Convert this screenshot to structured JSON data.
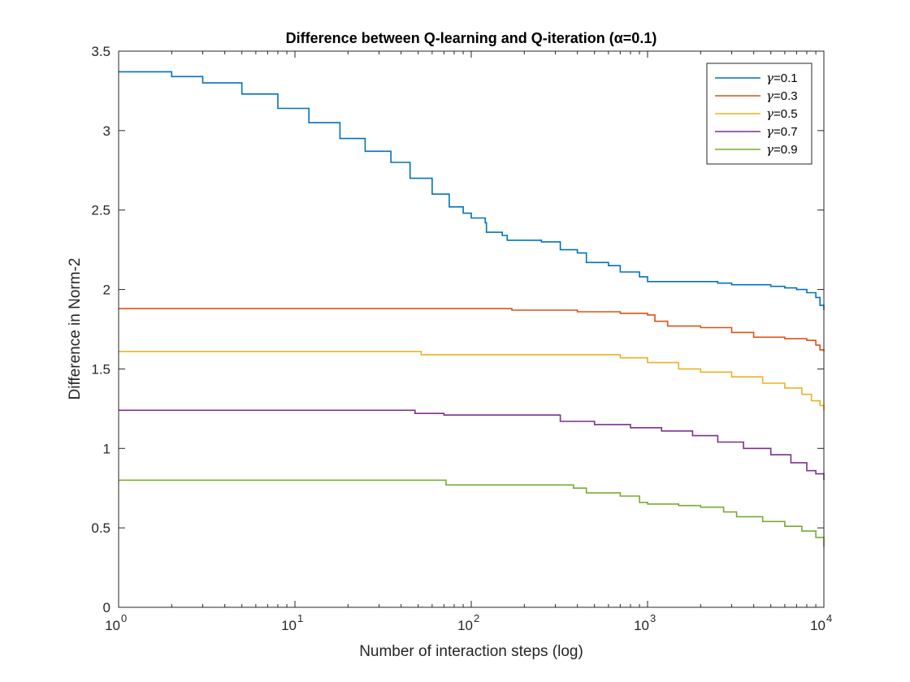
{
  "chart_data": {
    "type": "line",
    "title": "Difference between Q-learning and Q-iteration (α=0.1)",
    "xlabel": "Number of interaction steps (log)",
    "ylabel": "Difference in Norm-2",
    "xscale": "log",
    "xlim": [
      1,
      10000
    ],
    "ylim": [
      0,
      3.5
    ],
    "xticks": [
      1,
      10,
      100,
      1000,
      10000
    ],
    "xtick_base": "10",
    "xtick_exponents": [
      "0",
      "1",
      "2",
      "3",
      "4"
    ],
    "yticks": [
      0,
      0.5,
      1,
      1.5,
      2,
      2.5,
      3,
      3.5
    ],
    "ytick_labels": [
      "0",
      "0.5",
      "1",
      "1.5",
      "2",
      "2.5",
      "3",
      "3.5"
    ],
    "grid": false,
    "legend_position": "top-right",
    "series": [
      {
        "name": "γ=0.1",
        "symbol": "γ",
        "value_label": "=0.1",
        "color": "#0072BD",
        "points": [
          [
            1,
            3.37
          ],
          [
            2,
            3.34
          ],
          [
            3,
            3.3
          ],
          [
            5,
            3.23
          ],
          [
            8,
            3.14
          ],
          [
            12,
            3.05
          ],
          [
            18,
            2.95
          ],
          [
            25,
            2.87
          ],
          [
            35,
            2.8
          ],
          [
            45,
            2.7
          ],
          [
            60,
            2.6
          ],
          [
            75,
            2.52
          ],
          [
            90,
            2.48
          ],
          [
            100,
            2.45
          ],
          [
            120,
            2.42
          ],
          [
            122,
            2.36
          ],
          [
            150,
            2.34
          ],
          [
            160,
            2.31
          ],
          [
            250,
            2.3
          ],
          [
            300,
            2.3
          ],
          [
            320,
            2.25
          ],
          [
            400,
            2.23
          ],
          [
            450,
            2.17
          ],
          [
            600,
            2.15
          ],
          [
            700,
            2.11
          ],
          [
            900,
            2.08
          ],
          [
            1000,
            2.05
          ],
          [
            1500,
            2.05
          ],
          [
            2500,
            2.04
          ],
          [
            3000,
            2.03
          ],
          [
            4000,
            2.03
          ],
          [
            5000,
            2.02
          ],
          [
            6000,
            2.01
          ],
          [
            7000,
            2.0
          ],
          [
            8000,
            1.98
          ],
          [
            9000,
            1.95
          ],
          [
            9500,
            1.9
          ],
          [
            10000,
            1.87
          ]
        ]
      },
      {
        "name": "γ=0.3",
        "symbol": "γ",
        "value_label": "=0.3",
        "color": "#D95319",
        "points": [
          [
            1,
            1.88
          ],
          [
            100,
            1.88
          ],
          [
            170,
            1.87
          ],
          [
            400,
            1.86
          ],
          [
            700,
            1.85
          ],
          [
            1000,
            1.84
          ],
          [
            1100,
            1.8
          ],
          [
            1300,
            1.77
          ],
          [
            2000,
            1.76
          ],
          [
            3000,
            1.73
          ],
          [
            4000,
            1.7
          ],
          [
            6000,
            1.69
          ],
          [
            8000,
            1.68
          ],
          [
            9000,
            1.65
          ],
          [
            9500,
            1.62
          ],
          [
            10000,
            1.61
          ]
        ]
      },
      {
        "name": "γ=0.5",
        "symbol": "γ",
        "value_label": "=0.5",
        "color": "#EDB120",
        "points": [
          [
            1,
            1.61
          ],
          [
            50,
            1.61
          ],
          [
            52,
            1.59
          ],
          [
            300,
            1.59
          ],
          [
            700,
            1.57
          ],
          [
            1000,
            1.54
          ],
          [
            1500,
            1.5
          ],
          [
            2000,
            1.48
          ],
          [
            3000,
            1.45
          ],
          [
            4500,
            1.41
          ],
          [
            6000,
            1.38
          ],
          [
            7500,
            1.34
          ],
          [
            8500,
            1.3
          ],
          [
            9500,
            1.27
          ],
          [
            10000,
            1.24
          ]
        ]
      },
      {
        "name": "γ=0.7",
        "symbol": "γ",
        "value_label": "=0.7",
        "color": "#7E2F8E",
        "points": [
          [
            1,
            1.24
          ],
          [
            45,
            1.24
          ],
          [
            48,
            1.22
          ],
          [
            70,
            1.21
          ],
          [
            300,
            1.21
          ],
          [
            320,
            1.17
          ],
          [
            500,
            1.15
          ],
          [
            800,
            1.13
          ],
          [
            1200,
            1.11
          ],
          [
            1800,
            1.08
          ],
          [
            2500,
            1.04
          ],
          [
            3500,
            1.0
          ],
          [
            5000,
            0.96
          ],
          [
            6500,
            0.91
          ],
          [
            8000,
            0.86
          ],
          [
            9000,
            0.84
          ],
          [
            10000,
            0.8
          ]
        ]
      },
      {
        "name": "γ=0.9",
        "symbol": "γ",
        "value_label": "=0.9",
        "color": "#77AC30",
        "points": [
          [
            1,
            0.8
          ],
          [
            70,
            0.8
          ],
          [
            72,
            0.77
          ],
          [
            300,
            0.77
          ],
          [
            380,
            0.75
          ],
          [
            450,
            0.72
          ],
          [
            700,
            0.7
          ],
          [
            900,
            0.66
          ],
          [
            1000,
            0.65
          ],
          [
            1500,
            0.64
          ],
          [
            2000,
            0.63
          ],
          [
            2700,
            0.6
          ],
          [
            3200,
            0.57
          ],
          [
            4500,
            0.54
          ],
          [
            6000,
            0.51
          ],
          [
            7500,
            0.48
          ],
          [
            9000,
            0.44
          ],
          [
            10000,
            0.38
          ]
        ]
      }
    ]
  }
}
